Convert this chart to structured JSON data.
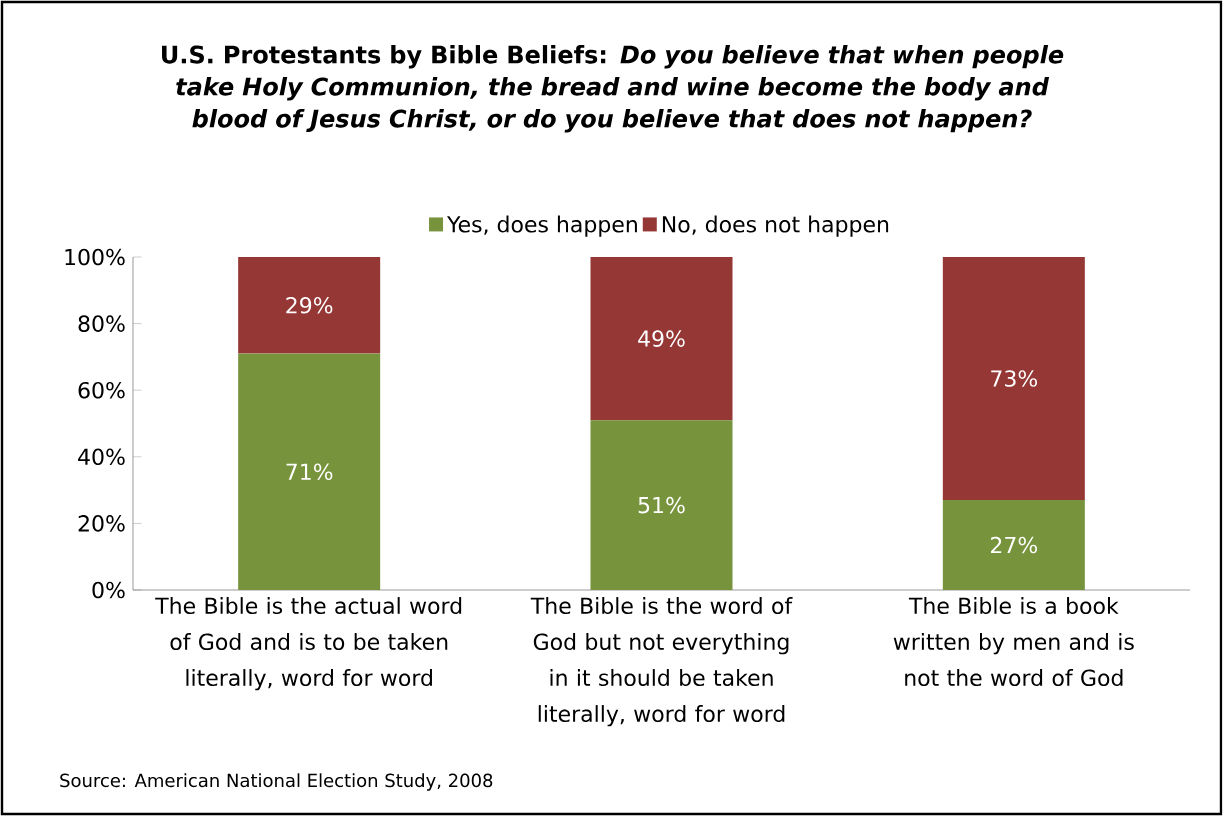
{
  "chart_data": {
    "type": "bar",
    "stacked": true,
    "title": "U.S. Protestants by Bible Beliefs: *Do you believe that when people take Holy Communion, the bread and wine become the body and blood of Jesus Christ, or do you believe that does not happen?*",
    "categories": [
      "The Bible is the actual word of God and is to be taken literally, word for word",
      "The Bible is the word of God but not everything in it should be taken literally, word for word",
      "The Bible is a book written by men and is not the word of God"
    ],
    "series": [
      {
        "name": "Yes, does happen",
        "color": "#77933c",
        "values": [
          71,
          51,
          27
        ],
        "value_labels": [
          "71%",
          "51%",
          "27%"
        ]
      },
      {
        "name": "No, does not happen",
        "color": "#953735",
        "values": [
          29,
          49,
          73
        ],
        "value_labels": [
          "29%",
          "49%",
          "73%"
        ]
      }
    ],
    "ylim": [
      0,
      100
    ],
    "yticks": [
      {
        "value": 0,
        "label": "0%"
      },
      {
        "value": 20,
        "label": "20%"
      },
      {
        "value": 40,
        "label": "40%"
      },
      {
        "value": 60,
        "label": "60%"
      },
      {
        "value": 80,
        "label": "80%"
      },
      {
        "value": 100,
        "label": "100%"
      }
    ],
    "grid": false,
    "legend": "top",
    "annotations": [
      "Source: American National Election Study, 2008"
    ]
  }
}
